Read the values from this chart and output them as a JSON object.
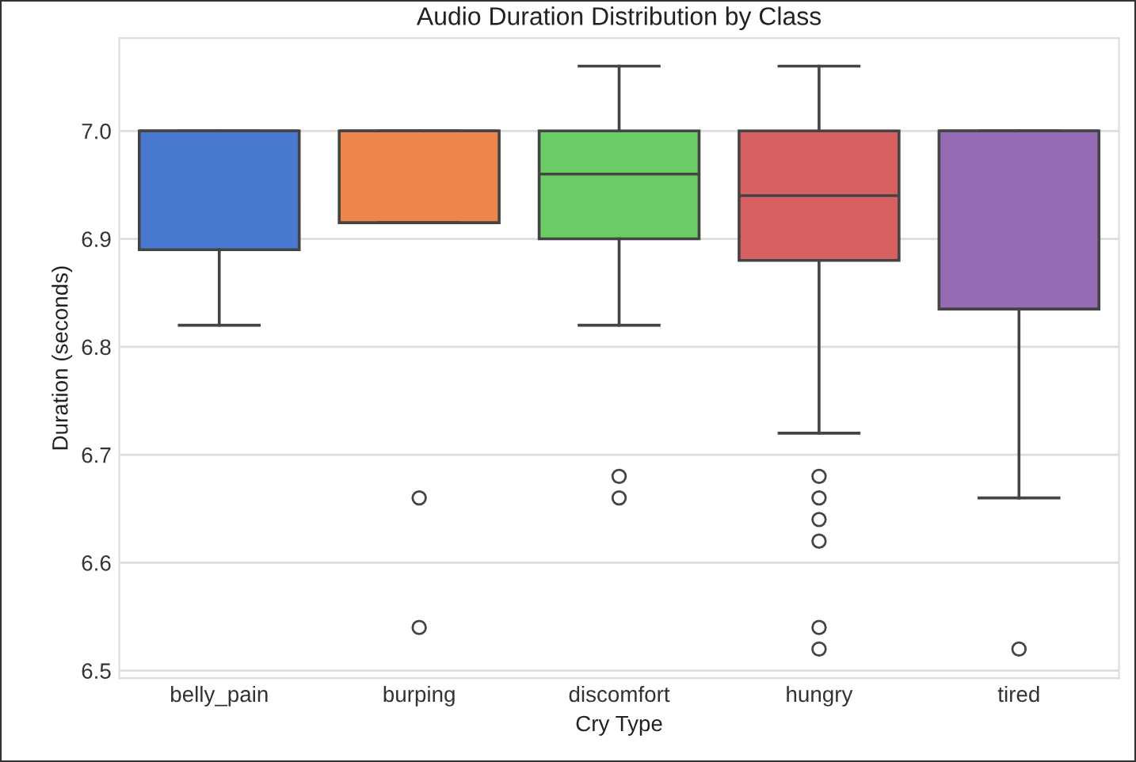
{
  "chart_data": {
    "type": "box",
    "title": "Audio Duration Distribution by Class",
    "xlabel": "Cry Type",
    "ylabel": "Duration (seconds)",
    "categories": [
      "belly_pain",
      "burping",
      "discomfort",
      "hungry",
      "tired"
    ],
    "colors": [
      "#4878d0",
      "#ee854a",
      "#6acc64",
      "#d65f5f",
      "#956cb4"
    ],
    "boxes": [
      {
        "low": 6.82,
        "q1": 6.89,
        "median": 7.0,
        "q3": 7.0,
        "high": 7.0
      },
      {
        "low": 6.915,
        "q1": 6.915,
        "median": 7.0,
        "q3": 7.0,
        "high": 7.0,
        "outliers": [
          6.66,
          6.54
        ]
      },
      {
        "low": 6.82,
        "q1": 6.9,
        "median": 6.96,
        "q3": 7.0,
        "high": 7.06,
        "outliers": [
          6.68,
          6.66
        ]
      },
      {
        "low": 6.72,
        "q1": 6.88,
        "median": 6.94,
        "q3": 7.0,
        "high": 7.06,
        "outliers": [
          6.68,
          6.66,
          6.64,
          6.62,
          6.54,
          6.52
        ]
      },
      {
        "low": 6.66,
        "q1": 6.835,
        "median": 7.0,
        "q3": 7.0,
        "high": 7.0,
        "outliers": [
          6.52
        ]
      }
    ],
    "ylim": [
      6.493,
      7.086
    ],
    "yticks": [
      6.5,
      6.6,
      6.7,
      6.8,
      6.9,
      {
        "value": 7.0,
        "label": "7.0"
      }
    ],
    "grid": "y"
  }
}
